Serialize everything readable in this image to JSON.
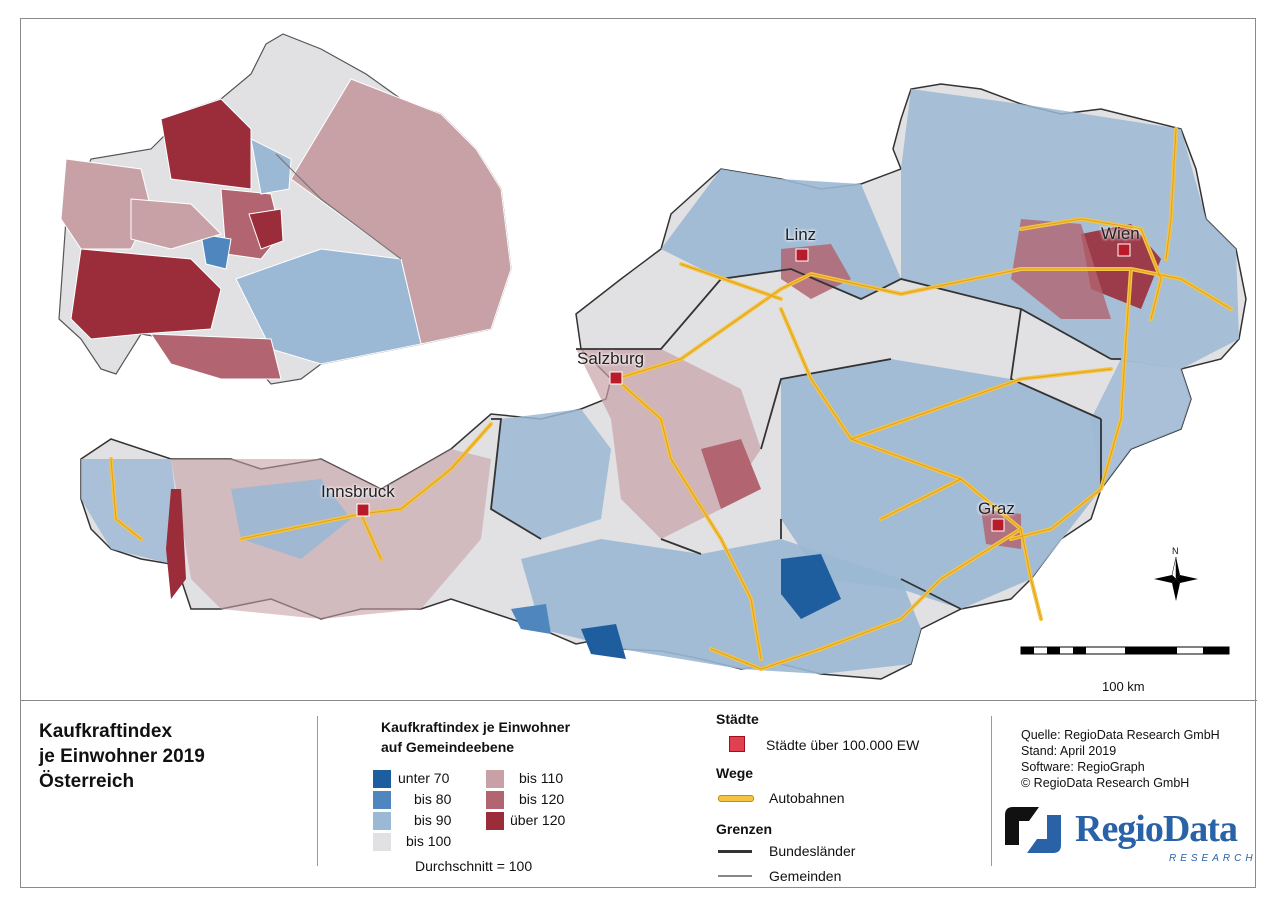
{
  "legend": {
    "title_lines": [
      "Kaufkraftindex",
      "je Einwohner 2019",
      "Österreich"
    ],
    "class_heading_lines": [
      "Kaufkraftindex je Einwohner",
      "auf Gemeindeebene"
    ],
    "classes": [
      {
        "label": "unter 70",
        "color": "#1f5e9e"
      },
      {
        "label": "bis 80",
        "color": "#4f86be"
      },
      {
        "label": "bis 90",
        "color": "#9bb8d4"
      },
      {
        "label": "bis 100",
        "color": "#e1e1e3"
      },
      {
        "label": "bis 110",
        "color": "#c8a1a7"
      },
      {
        "label": "bis 120",
        "color": "#b26571"
      },
      {
        "label": "über 120",
        "color": "#9b2c3a"
      }
    ],
    "average_note": "Durchschnitt = 100",
    "staedte_heading": "Städte",
    "staedte_item": "Städte über 100.000 EW",
    "wege_heading": "Wege",
    "wege_item": "Autobahnen",
    "grenzen_heading": "Grenzen",
    "grenzen_items": [
      "Bundesländer",
      "Gemeinden"
    ]
  },
  "source": {
    "lines": [
      "Quelle: RegioData Research GmbH",
      "Stand: April 2019",
      "Software: RegioGraph",
      "© RegioData Research GmbH"
    ]
  },
  "logo": {
    "name": "RegioData",
    "sub": "RESEARCH"
  },
  "map": {
    "cities": [
      "Linz",
      "Wien",
      "Salzburg",
      "Innsbruck",
      "Graz"
    ],
    "scale_label": "100 km",
    "north_label": "N"
  }
}
